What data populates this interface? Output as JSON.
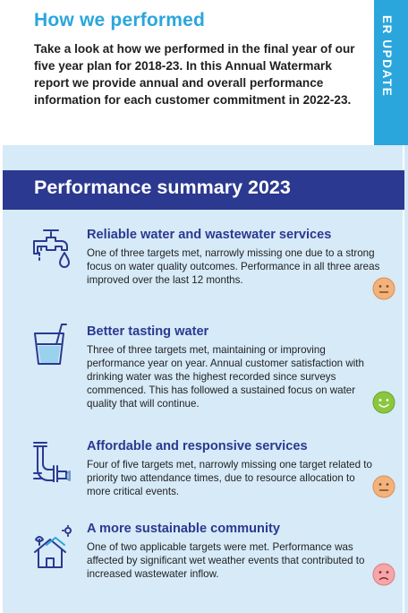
{
  "header": {
    "title": "How we performed",
    "intro": "Take a look at how we performed in the final year of our five year plan for 2018-23. In this Annual Watermark report we provide annual and overall performance information for each customer commitment in 2022-23.",
    "side_tab_text": "ER UPDATE"
  },
  "summary": {
    "title": "Performance summary 2023",
    "items": [
      {
        "title": "Reliable water and wastewater services",
        "description": "One of three targets met, narrowly missing one due to a strong focus on water quality outcomes. Performance in all three areas improved over the last 12 months.",
        "icon": "tap-icon",
        "rating": "neutral"
      },
      {
        "title": "Better tasting water",
        "description": "Three of three targets met, maintaining or improving performance year on year. Annual customer satisfaction with drinking water was the highest recorded since surveys commenced. This has followed a sustained focus on water quality that will continue.",
        "icon": "glass-icon",
        "rating": "happy"
      },
      {
        "title": "Affordable and responsive services",
        "description": "Four of five targets met, narrowly missing one target related to priority two attendance times, due to resource allocation to more critical events.",
        "icon": "pipe-icon",
        "rating": "neutral"
      },
      {
        "title": "A more sustainable community",
        "description": "One of two applicable targets were met. Performance was affected by significant wet weather events that contributed to increased wastewater inflow.",
        "icon": "solar-house-icon",
        "rating": "unhappy"
      }
    ]
  },
  "colors": {
    "accent_blue": "#2aa6dc",
    "navy": "#2b3990",
    "panel": "#d6eaf8",
    "neutral_face": "#f2b27c",
    "happy_face": "#8cc63f",
    "unhappy_face": "#f4a6a8"
  }
}
